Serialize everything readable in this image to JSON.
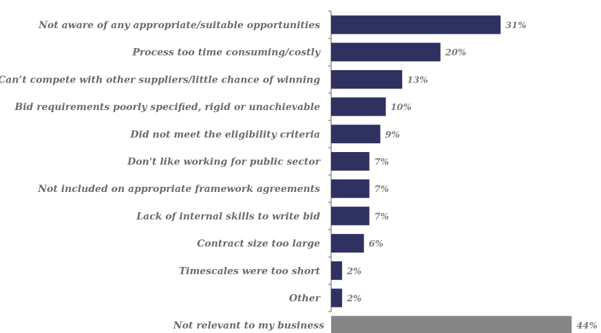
{
  "colors": {
    "bar_primary": "#2f3161",
    "bar_highlight": "#868686",
    "label_text": "#6b6b6b"
  },
  "chart_data": {
    "type": "bar",
    "orientation": "horizontal",
    "title": "",
    "xlabel": "",
    "ylabel": "",
    "grid": false,
    "xlim": [
      0,
      44
    ],
    "value_suffix": "%",
    "categories": [
      "Not aware of any appropriate/suitable opportunities",
      "Process too time consuming/costly",
      "Can’t compete with other suppliers/little chance of winning",
      "Bid requirements poorly specified, rigid or unachievable",
      "Did not meet the eligibility criteria",
      "Don't like working for public sector",
      "Not included on appropriate framework agreements",
      "Lack of internal skills to write bid",
      "Contract size too large",
      "Timescales were too short",
      "Other",
      "Not relevant to my business"
    ],
    "values": [
      31,
      20,
      13,
      10,
      9,
      7,
      7,
      7,
      6,
      2,
      2,
      44
    ],
    "value_labels": [
      "31%",
      "20%",
      "13%",
      "10%",
      "9%",
      "7%",
      "7%",
      "7%",
      "6%",
      "2%",
      "2%",
      "44%"
    ],
    "highlight_index": 11
  }
}
